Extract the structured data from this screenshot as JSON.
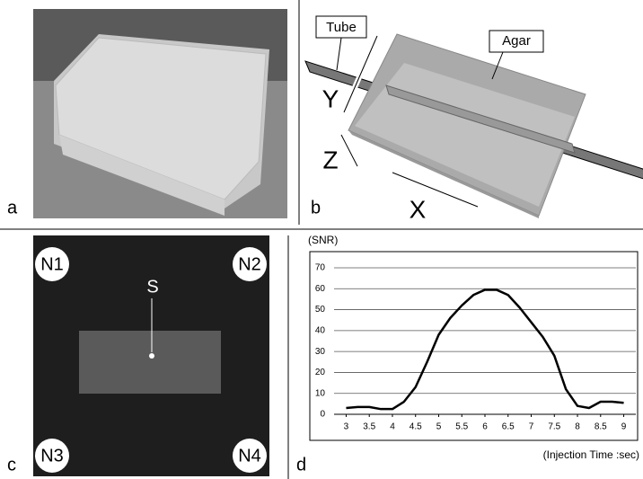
{
  "panels": {
    "a": {
      "label": "a"
    },
    "b": {
      "label": "b",
      "tube": "Tube",
      "agar": "Agar",
      "axes": [
        "Y",
        "Z",
        "X"
      ]
    },
    "c": {
      "label": "c",
      "corners": [
        "N1",
        "N2",
        "N3",
        "N4"
      ],
      "source": "S"
    },
    "d": {
      "label": "d"
    }
  },
  "chart_data": {
    "type": "line",
    "y_label": "(SNR)",
    "x_label": "(Injection Time :sec)",
    "x": [
      3,
      3.25,
      3.5,
      3.75,
      4,
      4.25,
      4.5,
      4.75,
      5,
      5.25,
      5.5,
      5.75,
      6,
      6.25,
      6.5,
      6.75,
      7,
      7.25,
      7.5,
      7.75,
      8,
      8.25,
      8.5,
      8.75,
      9
    ],
    "series": [
      {
        "color": "#000000",
        "values": [
          3,
          3.5,
          3.5,
          2.5,
          2.5,
          6,
          13,
          25,
          38,
          46,
          52,
          57,
          59.5,
          59.5,
          57,
          51,
          44,
          37,
          28,
          12,
          4,
          3,
          6,
          6,
          5.5
        ]
      }
    ],
    "xlim": [
      2.7,
      9.3
    ],
    "ylim": [
      0,
      70
    ],
    "xticks": [
      3,
      3.5,
      4,
      4.5,
      5,
      5.5,
      6,
      6.5,
      7,
      7.5,
      8,
      8.5,
      9
    ],
    "yticks": [
      0,
      10,
      20,
      30,
      40,
      50,
      60,
      70
    ],
    "grid": true
  }
}
